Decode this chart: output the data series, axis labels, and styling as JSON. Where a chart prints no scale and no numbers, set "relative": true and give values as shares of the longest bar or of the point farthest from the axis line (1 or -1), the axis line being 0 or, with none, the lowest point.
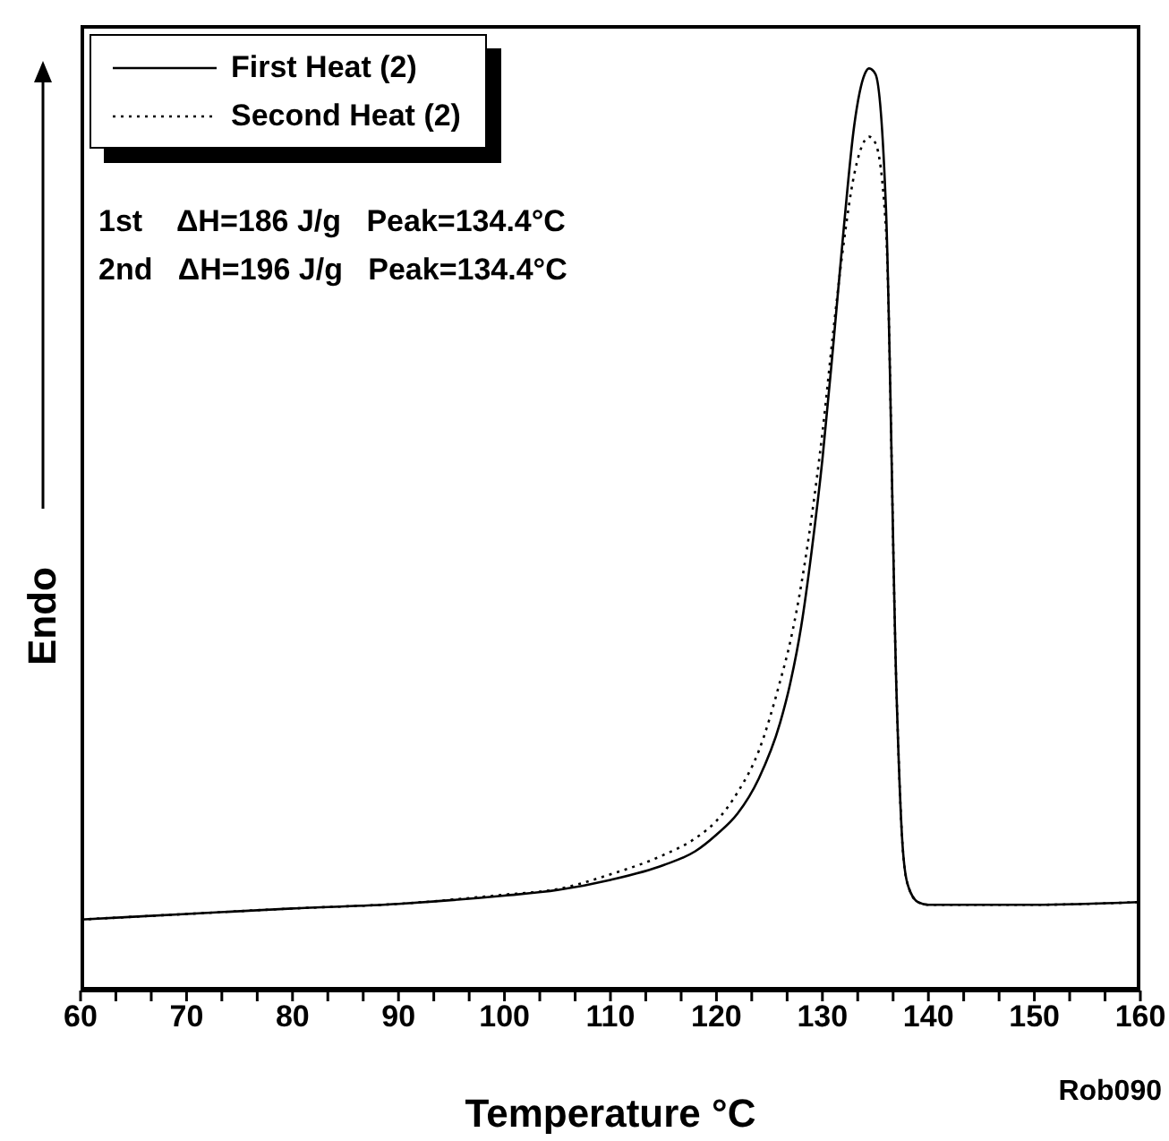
{
  "chart_data": {
    "type": "line",
    "relative": true,
    "xlabel": "Temperature °C",
    "ylabel": "Endo",
    "legend": "top left",
    "marker": "none",
    "x": [
      60,
      70,
      80,
      90,
      100,
      105,
      110,
      115,
      118,
      120,
      122,
      124,
      126,
      127,
      128,
      129,
      130,
      131,
      132,
      133,
      134,
      134.4,
      135,
      136,
      137,
      137.5,
      138,
      139,
      140,
      150,
      160
    ],
    "xlim": [
      60,
      160
    ],
    "xticks": [
      60,
      {
        "value": 63.33,
        "label": null
      },
      {
        "value": 66.67,
        "label": null
      },
      70,
      {
        "value": 73.33,
        "label": null
      },
      {
        "value": 76.67,
        "label": null
      },
      80,
      {
        "value": 83.33,
        "label": null
      },
      {
        "value": 86.67,
        "label": null
      },
      90,
      {
        "value": 93.33,
        "label": null
      },
      {
        "value": 96.67,
        "label": null
      },
      100,
      {
        "value": 103.33,
        "label": null
      },
      {
        "value": 106.67,
        "label": null
      },
      110,
      {
        "value": 113.33,
        "label": null
      },
      {
        "value": 116.67,
        "label": null
      },
      120,
      {
        "value": 123.33,
        "label": null
      },
      {
        "value": 126.67,
        "label": null
      },
      130,
      {
        "value": 133.33,
        "label": null
      },
      {
        "value": 136.67,
        "label": null
      },
      140,
      {
        "value": 143.33,
        "label": null
      },
      {
        "value": 146.67,
        "label": null
      },
      150,
      {
        "value": 153.33,
        "label": null
      },
      {
        "value": 156.67,
        "label": null
      },
      160
    ],
    "series": [
      {
        "name": "First Heat (2)",
        "color": "#000000",
        "line_style": "solid",
        "values": [
          0.077,
          0.083,
          0.089,
          0.094,
          0.103,
          0.109,
          0.12,
          0.136,
          0.151,
          0.169,
          0.192,
          0.23,
          0.29,
          0.335,
          0.395,
          0.478,
          0.576,
          0.697,
          0.825,
          0.938,
          0.994,
          1,
          0.994,
          0.847,
          0.32,
          0.169,
          0.117,
          0.096,
          0.093,
          0.093,
          0.096
        ]
      },
      {
        "name": "Second Heat (2)",
        "color": "#000000",
        "line_style": "dotted",
        "values": [
          0.077,
          0.083,
          0.089,
          0.094,
          0.104,
          0.11,
          0.126,
          0.147,
          0.165,
          0.184,
          0.215,
          0.26,
          0.335,
          0.38,
          0.44,
          0.515,
          0.605,
          0.712,
          0.81,
          0.885,
          0.922,
          0.926,
          0.919,
          0.825,
          0.32,
          0.169,
          0.117,
          0.096,
          0.093,
          0.093,
          0.096
        ]
      }
    ],
    "annotations": [
      "1st    ΔH=186 J/g   Peak=134.4°C",
      "2nd   ΔH=196 J/g   Peak=134.4°C",
      "Rob090"
    ]
  }
}
